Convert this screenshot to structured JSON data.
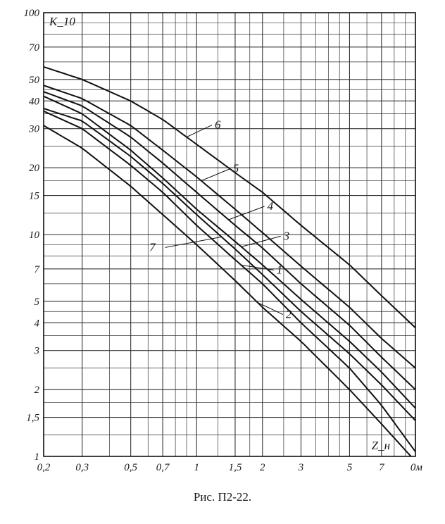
{
  "caption": "Рис. П2-22.",
  "chart_data": {
    "type": "line",
    "title": "",
    "xlabel": "Z_н",
    "xunit": "Ом",
    "ylabel": "K_10",
    "xscale": "log",
    "yscale": "log",
    "xlim": [
      0.2,
      10
    ],
    "ylim": [
      1,
      100
    ],
    "grid": true,
    "x_tick_labels": [
      {
        "v": 0.2,
        "t": "0,2"
      },
      {
        "v": 0.3,
        "t": "0,3"
      },
      {
        "v": 0.5,
        "t": "0,5"
      },
      {
        "v": 0.7,
        "t": "0,7"
      },
      {
        "v": 1,
        "t": "1"
      },
      {
        "v": 1.5,
        "t": "1,5"
      },
      {
        "v": 2,
        "t": "2"
      },
      {
        "v": 3,
        "t": "3"
      },
      {
        "v": 5,
        "t": "5"
      },
      {
        "v": 7,
        "t": "7"
      },
      {
        "v": 10,
        "t": "0м"
      }
    ],
    "y_tick_labels": [
      {
        "v": 1,
        "t": "1"
      },
      {
        "v": 1.5,
        "t": "1,5"
      },
      {
        "v": 2,
        "t": "2"
      },
      {
        "v": 3,
        "t": "3"
      },
      {
        "v": 4,
        "t": "4"
      },
      {
        "v": 5,
        "t": "5"
      },
      {
        "v": 7,
        "t": "7"
      },
      {
        "v": 10,
        "t": "10"
      },
      {
        "v": 15,
        "t": "15"
      },
      {
        "v": 20,
        "t": "20"
      },
      {
        "v": 30,
        "t": "30"
      },
      {
        "v": 40,
        "t": "40"
      },
      {
        "v": 50,
        "t": "50"
      },
      {
        "v": 70,
        "t": "70"
      },
      {
        "v": 100,
        "t": "100"
      }
    ],
    "series": [
      {
        "name": "1",
        "x": [
          0.2,
          0.3,
          0.5,
          0.7,
          1,
          1.5,
          2,
          3,
          5,
          7,
          10
        ],
        "y": [
          36,
          30,
          20.5,
          15.5,
          11,
          7.7,
          6,
          4,
          2.5,
          1.7,
          1.05
        ],
        "label_at": 1.6
      },
      {
        "name": "2",
        "x": [
          0.2,
          0.3,
          0.5,
          0.7,
          1,
          1.5,
          2,
          3,
          5,
          7,
          10
        ],
        "y": [
          31,
          24.5,
          16.5,
          12.3,
          9,
          6.2,
          4.7,
          3.3,
          2,
          1.4,
          0.95
        ],
        "label_at": 1.9
      },
      {
        "name": "3",
        "x": [
          0.2,
          0.3,
          0.5,
          0.7,
          1,
          1.5,
          2,
          3,
          5,
          7,
          10
        ],
        "y": [
          42,
          35,
          24,
          18,
          13,
          9.3,
          7.3,
          5.1,
          3.3,
          2.4,
          1.65
        ],
        "label_at": 1.6
      },
      {
        "name": "4",
        "x": [
          0.2,
          0.3,
          0.5,
          0.7,
          1,
          1.5,
          2,
          3,
          5,
          7,
          10
        ],
        "y": [
          44,
          38,
          27.5,
          21,
          15.5,
          11,
          8.7,
          6,
          3.9,
          2.8,
          2.0
        ],
        "label_at": 1.4
      },
      {
        "name": "5",
        "x": [
          0.2,
          0.3,
          0.5,
          0.7,
          1,
          1.5,
          2,
          3,
          5,
          7,
          10
        ],
        "y": [
          47,
          41,
          31,
          24,
          18.2,
          13,
          10.2,
          7.2,
          4.7,
          3.4,
          2.5
        ],
        "label_at": 1.05
      },
      {
        "name": "6",
        "x": [
          0.2,
          0.3,
          0.5,
          0.7,
          1,
          1.5,
          2,
          3,
          5,
          7,
          10
        ],
        "y": [
          57,
          50,
          40,
          33,
          25.5,
          19,
          15.5,
          11,
          7.3,
          5.3,
          3.8
        ],
        "label_at": 0.9
      },
      {
        "name": "7",
        "x": [
          0.2,
          0.3,
          0.5,
          0.7,
          1,
          1.5,
          2,
          3,
          5,
          7,
          10
        ],
        "y": [
          37,
          32.5,
          22.5,
          17,
          12.3,
          8.6,
          6.6,
          4.5,
          2.9,
          2.1,
          1.45
        ],
        "label_at": 1.3
      }
    ]
  }
}
